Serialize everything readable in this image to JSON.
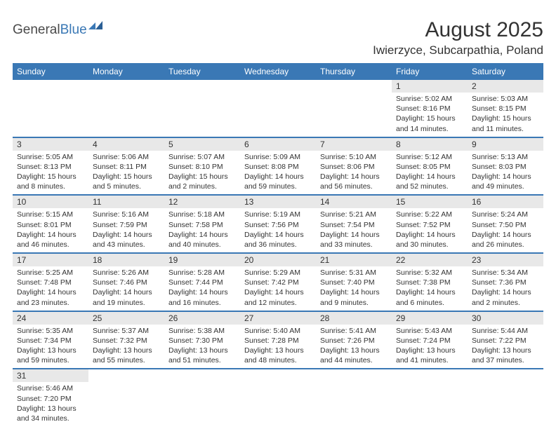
{
  "logo": {
    "part1": "General",
    "part2": "Blue"
  },
  "title": "August 2025",
  "location": "Iwierzyce, Subcarpathia, Poland",
  "colors": {
    "header_bg": "#3a78b5",
    "header_fg": "#ffffff",
    "daynum_bg": "#e8e8e8",
    "row_divider": "#3a78b5",
    "text": "#333333",
    "background": "#ffffff"
  },
  "weekdays": [
    "Sunday",
    "Monday",
    "Tuesday",
    "Wednesday",
    "Thursday",
    "Friday",
    "Saturday"
  ],
  "weeks": [
    [
      {
        "day": "",
        "sunrise": "",
        "sunset": "",
        "daylight": ""
      },
      {
        "day": "",
        "sunrise": "",
        "sunset": "",
        "daylight": ""
      },
      {
        "day": "",
        "sunrise": "",
        "sunset": "",
        "daylight": ""
      },
      {
        "day": "",
        "sunrise": "",
        "sunset": "",
        "daylight": ""
      },
      {
        "day": "",
        "sunrise": "",
        "sunset": "",
        "daylight": ""
      },
      {
        "day": "1",
        "sunrise": "Sunrise: 5:02 AM",
        "sunset": "Sunset: 8:16 PM",
        "daylight": "Daylight: 15 hours and 14 minutes."
      },
      {
        "day": "2",
        "sunrise": "Sunrise: 5:03 AM",
        "sunset": "Sunset: 8:15 PM",
        "daylight": "Daylight: 15 hours and 11 minutes."
      }
    ],
    [
      {
        "day": "3",
        "sunrise": "Sunrise: 5:05 AM",
        "sunset": "Sunset: 8:13 PM",
        "daylight": "Daylight: 15 hours and 8 minutes."
      },
      {
        "day": "4",
        "sunrise": "Sunrise: 5:06 AM",
        "sunset": "Sunset: 8:11 PM",
        "daylight": "Daylight: 15 hours and 5 minutes."
      },
      {
        "day": "5",
        "sunrise": "Sunrise: 5:07 AM",
        "sunset": "Sunset: 8:10 PM",
        "daylight": "Daylight: 15 hours and 2 minutes."
      },
      {
        "day": "6",
        "sunrise": "Sunrise: 5:09 AM",
        "sunset": "Sunset: 8:08 PM",
        "daylight": "Daylight: 14 hours and 59 minutes."
      },
      {
        "day": "7",
        "sunrise": "Sunrise: 5:10 AM",
        "sunset": "Sunset: 8:06 PM",
        "daylight": "Daylight: 14 hours and 56 minutes."
      },
      {
        "day": "8",
        "sunrise": "Sunrise: 5:12 AM",
        "sunset": "Sunset: 8:05 PM",
        "daylight": "Daylight: 14 hours and 52 minutes."
      },
      {
        "day": "9",
        "sunrise": "Sunrise: 5:13 AM",
        "sunset": "Sunset: 8:03 PM",
        "daylight": "Daylight: 14 hours and 49 minutes."
      }
    ],
    [
      {
        "day": "10",
        "sunrise": "Sunrise: 5:15 AM",
        "sunset": "Sunset: 8:01 PM",
        "daylight": "Daylight: 14 hours and 46 minutes."
      },
      {
        "day": "11",
        "sunrise": "Sunrise: 5:16 AM",
        "sunset": "Sunset: 7:59 PM",
        "daylight": "Daylight: 14 hours and 43 minutes."
      },
      {
        "day": "12",
        "sunrise": "Sunrise: 5:18 AM",
        "sunset": "Sunset: 7:58 PM",
        "daylight": "Daylight: 14 hours and 40 minutes."
      },
      {
        "day": "13",
        "sunrise": "Sunrise: 5:19 AM",
        "sunset": "Sunset: 7:56 PM",
        "daylight": "Daylight: 14 hours and 36 minutes."
      },
      {
        "day": "14",
        "sunrise": "Sunrise: 5:21 AM",
        "sunset": "Sunset: 7:54 PM",
        "daylight": "Daylight: 14 hours and 33 minutes."
      },
      {
        "day": "15",
        "sunrise": "Sunrise: 5:22 AM",
        "sunset": "Sunset: 7:52 PM",
        "daylight": "Daylight: 14 hours and 30 minutes."
      },
      {
        "day": "16",
        "sunrise": "Sunrise: 5:24 AM",
        "sunset": "Sunset: 7:50 PM",
        "daylight": "Daylight: 14 hours and 26 minutes."
      }
    ],
    [
      {
        "day": "17",
        "sunrise": "Sunrise: 5:25 AM",
        "sunset": "Sunset: 7:48 PM",
        "daylight": "Daylight: 14 hours and 23 minutes."
      },
      {
        "day": "18",
        "sunrise": "Sunrise: 5:26 AM",
        "sunset": "Sunset: 7:46 PM",
        "daylight": "Daylight: 14 hours and 19 minutes."
      },
      {
        "day": "19",
        "sunrise": "Sunrise: 5:28 AM",
        "sunset": "Sunset: 7:44 PM",
        "daylight": "Daylight: 14 hours and 16 minutes."
      },
      {
        "day": "20",
        "sunrise": "Sunrise: 5:29 AM",
        "sunset": "Sunset: 7:42 PM",
        "daylight": "Daylight: 14 hours and 12 minutes."
      },
      {
        "day": "21",
        "sunrise": "Sunrise: 5:31 AM",
        "sunset": "Sunset: 7:40 PM",
        "daylight": "Daylight: 14 hours and 9 minutes."
      },
      {
        "day": "22",
        "sunrise": "Sunrise: 5:32 AM",
        "sunset": "Sunset: 7:38 PM",
        "daylight": "Daylight: 14 hours and 6 minutes."
      },
      {
        "day": "23",
        "sunrise": "Sunrise: 5:34 AM",
        "sunset": "Sunset: 7:36 PM",
        "daylight": "Daylight: 14 hours and 2 minutes."
      }
    ],
    [
      {
        "day": "24",
        "sunrise": "Sunrise: 5:35 AM",
        "sunset": "Sunset: 7:34 PM",
        "daylight": "Daylight: 13 hours and 59 minutes."
      },
      {
        "day": "25",
        "sunrise": "Sunrise: 5:37 AM",
        "sunset": "Sunset: 7:32 PM",
        "daylight": "Daylight: 13 hours and 55 minutes."
      },
      {
        "day": "26",
        "sunrise": "Sunrise: 5:38 AM",
        "sunset": "Sunset: 7:30 PM",
        "daylight": "Daylight: 13 hours and 51 minutes."
      },
      {
        "day": "27",
        "sunrise": "Sunrise: 5:40 AM",
        "sunset": "Sunset: 7:28 PM",
        "daylight": "Daylight: 13 hours and 48 minutes."
      },
      {
        "day": "28",
        "sunrise": "Sunrise: 5:41 AM",
        "sunset": "Sunset: 7:26 PM",
        "daylight": "Daylight: 13 hours and 44 minutes."
      },
      {
        "day": "29",
        "sunrise": "Sunrise: 5:43 AM",
        "sunset": "Sunset: 7:24 PM",
        "daylight": "Daylight: 13 hours and 41 minutes."
      },
      {
        "day": "30",
        "sunrise": "Sunrise: 5:44 AM",
        "sunset": "Sunset: 7:22 PM",
        "daylight": "Daylight: 13 hours and 37 minutes."
      }
    ],
    [
      {
        "day": "31",
        "sunrise": "Sunrise: 5:46 AM",
        "sunset": "Sunset: 7:20 PM",
        "daylight": "Daylight: 13 hours and 34 minutes."
      },
      {
        "day": "",
        "sunrise": "",
        "sunset": "",
        "daylight": ""
      },
      {
        "day": "",
        "sunrise": "",
        "sunset": "",
        "daylight": ""
      },
      {
        "day": "",
        "sunrise": "",
        "sunset": "",
        "daylight": ""
      },
      {
        "day": "",
        "sunrise": "",
        "sunset": "",
        "daylight": ""
      },
      {
        "day": "",
        "sunrise": "",
        "sunset": "",
        "daylight": ""
      },
      {
        "day": "",
        "sunrise": "",
        "sunset": "",
        "daylight": ""
      }
    ]
  ]
}
